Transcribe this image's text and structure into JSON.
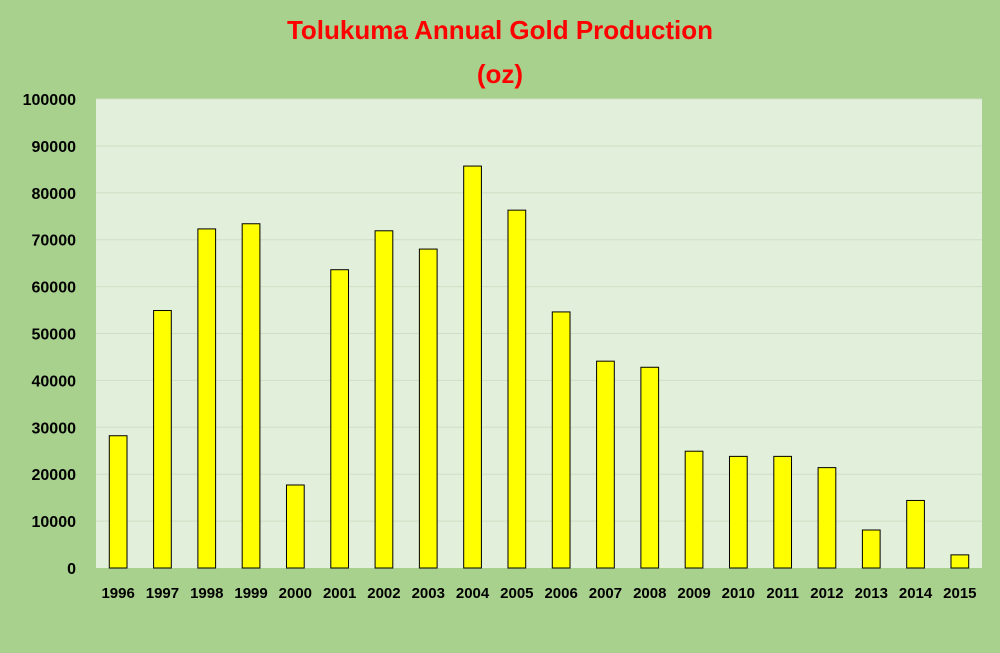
{
  "chart_data": {
    "type": "bar",
    "title": "Tolukuma Annual Gold Production",
    "subtitle": "(oz)",
    "xlabel": "",
    "ylabel": "",
    "categories": [
      "1996",
      "1997",
      "1998",
      "1999",
      "2000",
      "2001",
      "2002",
      "2003",
      "2004",
      "2005",
      "2006",
      "2007",
      "2008",
      "2009",
      "2010",
      "2011",
      "2012",
      "2013",
      "2014",
      "2015"
    ],
    "values": [
      28200,
      54900,
      72300,
      73400,
      17700,
      63600,
      71900,
      68000,
      85700,
      76300,
      54600,
      44100,
      42800,
      24900,
      23800,
      23800,
      21400,
      8100,
      14400,
      2800
    ],
    "ylim": [
      0,
      100000
    ],
    "yticks": [
      0,
      10000,
      20000,
      30000,
      40000,
      50000,
      60000,
      70000,
      80000,
      90000,
      100000
    ],
    "grid": true,
    "legend": "none",
    "colors": {
      "bar_fill": "#ffff00",
      "bar_stroke": "#000000",
      "plot_background": "#e2efda",
      "chart_background": "#a9d18e",
      "gridline": "#d0dfc4",
      "title": "#ff0000"
    }
  }
}
